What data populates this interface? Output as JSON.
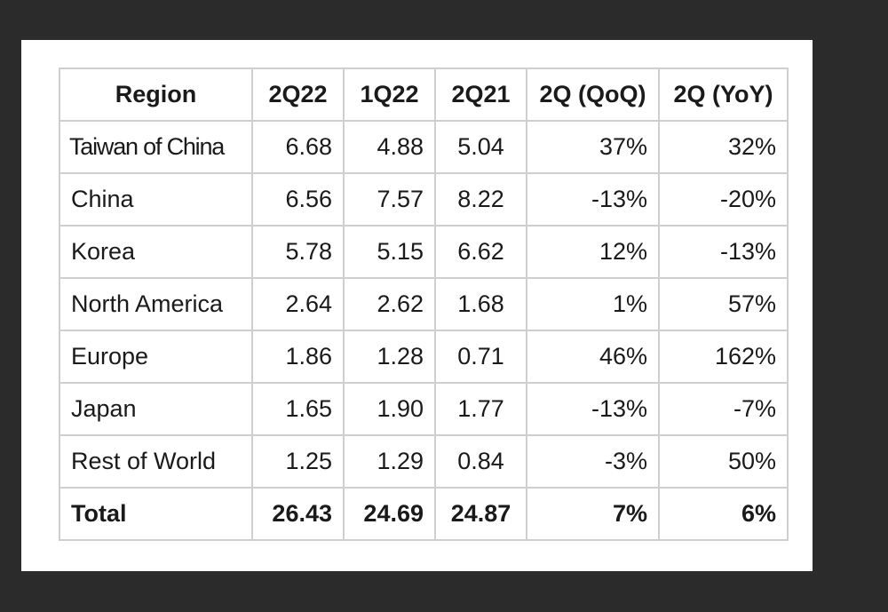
{
  "chart_data": {
    "type": "table",
    "columns": [
      "Region",
      "2Q22",
      "1Q22",
      "2Q21",
      "2Q (QoQ)",
      "2Q (YoY)"
    ],
    "rows": [
      [
        "Taiwan of China",
        "6.68",
        "4.88",
        "5.04",
        "37%",
        "32%"
      ],
      [
        "China",
        "6.56",
        "7.57",
        "8.22",
        "-13%",
        "-20%"
      ],
      [
        "Korea",
        "5.78",
        "5.15",
        "6.62",
        "12%",
        "-13%"
      ],
      [
        "North America",
        "2.64",
        "2.62",
        "1.68",
        "1%",
        "57%"
      ],
      [
        "Europe",
        "1.86",
        "1.28",
        "0.71",
        "46%",
        "162%"
      ],
      [
        "Japan",
        "1.65",
        "1.90",
        "1.77",
        "-13%",
        "-7%"
      ],
      [
        "Rest of World",
        "1.25",
        "1.29",
        "0.84",
        "-3%",
        "50%"
      ]
    ],
    "total": [
      "Total",
      "26.43",
      "24.69",
      "24.87",
      "7%",
      "6%"
    ]
  }
}
